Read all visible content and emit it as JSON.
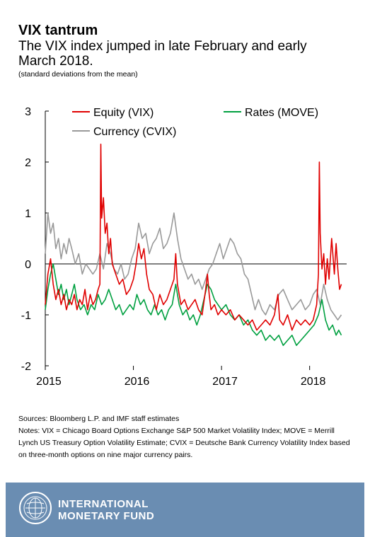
{
  "title": "VIX tantrum",
  "subtitle": "The VIX index jumped in late February and early March 2018.",
  "units": "(standard deviations from the mean)",
  "sources": "Sources: Bloomberg L.P. and IMF staff estimates",
  "notes": "Notes:  VIX = Chicago Board Options Exchange S&P 500 Market Volatility Index; MOVE = Merrill Lynch US Treasury Option Volatility Estimate; CVIX = Deutsche Bank Currency Volatility Index based on three-month options on nine major currency pairs.",
  "footer": {
    "org_line1": "INTERNATIONAL",
    "org_line2": "MONETARY FUND"
  },
  "colors": {
    "equity": "#e00000",
    "rates": "#00a040",
    "currency": "#999999",
    "footer_bg": "#6a8db2"
  },
  "chart_data": {
    "type": "line",
    "title": "",
    "xlabel": "",
    "ylabel": "",
    "ylim": [
      -2,
      3
    ],
    "yticks": [
      -2,
      -1,
      0,
      1,
      2,
      3
    ],
    "xlim": [
      2015.0,
      2018.42
    ],
    "xticks": [
      "2015",
      "2016",
      "2017",
      "2018"
    ],
    "grid": false,
    "legend": "top",
    "series": [
      {
        "name": "Equity (VIX)",
        "color": "#e00000",
        "x": [
          2015.0,
          2015.03,
          2015.06,
          2015.09,
          2015.12,
          2015.15,
          2015.18,
          2015.21,
          2015.24,
          2015.27,
          2015.3,
          2015.33,
          2015.36,
          2015.39,
          2015.42,
          2015.45,
          2015.48,
          2015.51,
          2015.54,
          2015.57,
          2015.6,
          2015.62,
          2015.63,
          2015.64,
          2015.66,
          2015.68,
          2015.7,
          2015.72,
          2015.74,
          2015.76,
          2015.8,
          2015.84,
          2015.88,
          2015.92,
          2015.96,
          2016.0,
          2016.03,
          2016.06,
          2016.09,
          2016.12,
          2016.15,
          2016.18,
          2016.22,
          2016.26,
          2016.3,
          2016.34,
          2016.38,
          2016.42,
          2016.46,
          2016.48,
          2016.5,
          2016.54,
          2016.58,
          2016.62,
          2016.66,
          2016.7,
          2016.74,
          2016.78,
          2016.82,
          2016.84,
          2016.86,
          2016.88,
          2016.92,
          2016.96,
          2017.0,
          2017.05,
          2017.1,
          2017.15,
          2017.2,
          2017.25,
          2017.3,
          2017.35,
          2017.4,
          2017.45,
          2017.5,
          2017.55,
          2017.6,
          2017.64,
          2017.66,
          2017.7,
          2017.75,
          2017.8,
          2017.85,
          2017.9,
          2017.95,
          2018.0,
          2018.04,
          2018.08,
          2018.1,
          2018.11,
          2018.12,
          2018.14,
          2018.16,
          2018.18,
          2018.2,
          2018.22,
          2018.25,
          2018.28,
          2018.3,
          2018.32,
          2018.34,
          2018.36
        ],
        "y": [
          -0.8,
          -0.2,
          0.1,
          -0.4,
          -0.7,
          -0.5,
          -0.8,
          -0.6,
          -0.9,
          -0.7,
          -0.8,
          -0.6,
          -0.9,
          -0.7,
          -0.8,
          -0.5,
          -0.9,
          -0.6,
          -0.8,
          -0.7,
          -0.5,
          -0.4,
          2.35,
          0.9,
          1.3,
          0.6,
          0.8,
          0.2,
          0.5,
          0.0,
          -0.2,
          -0.4,
          -0.3,
          -0.6,
          -0.5,
          -0.3,
          0.0,
          0.4,
          0.1,
          0.3,
          -0.2,
          -0.5,
          -0.6,
          -0.9,
          -0.6,
          -0.8,
          -0.7,
          -0.5,
          -0.3,
          0.2,
          -0.4,
          -0.8,
          -0.7,
          -0.9,
          -0.8,
          -0.7,
          -0.9,
          -1.0,
          -0.5,
          -0.2,
          -0.6,
          -0.9,
          -0.8,
          -1.0,
          -0.9,
          -1.0,
          -0.9,
          -1.1,
          -1.0,
          -1.1,
          -1.2,
          -1.1,
          -1.3,
          -1.2,
          -1.1,
          -1.2,
          -1.0,
          -0.6,
          -1.1,
          -1.2,
          -1.0,
          -1.3,
          -1.1,
          -1.2,
          -1.1,
          -1.2,
          -1.1,
          -0.8,
          -0.2,
          2.0,
          0.6,
          -0.1,
          0.2,
          -0.4,
          0.1,
          -0.3,
          0.5,
          -0.2,
          0.4,
          -0.1,
          -0.5,
          -0.4
        ]
      },
      {
        "name": "Rates (MOVE)",
        "color": "#00a040",
        "x": [
          2015.0,
          2015.03,
          2015.06,
          2015.09,
          2015.12,
          2015.15,
          2015.18,
          2015.21,
          2015.24,
          2015.27,
          2015.3,
          2015.33,
          2015.36,
          2015.4,
          2015.44,
          2015.48,
          2015.52,
          2015.56,
          2015.6,
          2015.64,
          2015.68,
          2015.72,
          2015.76,
          2015.8,
          2015.84,
          2015.88,
          2015.92,
          2015.96,
          2016.0,
          2016.04,
          2016.08,
          2016.12,
          2016.16,
          2016.2,
          2016.24,
          2016.28,
          2016.32,
          2016.36,
          2016.4,
          2016.44,
          2016.48,
          2016.52,
          2016.56,
          2016.6,
          2016.64,
          2016.68,
          2016.72,
          2016.76,
          2016.8,
          2016.84,
          2016.88,
          2016.92,
          2016.96,
          2017.0,
          2017.05,
          2017.1,
          2017.15,
          2017.2,
          2017.25,
          2017.3,
          2017.35,
          2017.4,
          2017.45,
          2017.5,
          2017.55,
          2017.6,
          2017.65,
          2017.7,
          2017.75,
          2017.8,
          2017.85,
          2017.9,
          2017.95,
          2018.0,
          2018.05,
          2018.1,
          2018.14,
          2018.18,
          2018.22,
          2018.26,
          2018.3,
          2018.33,
          2018.36
        ],
        "y": [
          -0.9,
          -0.5,
          -0.2,
          0.0,
          -0.3,
          -0.6,
          -0.4,
          -0.7,
          -0.5,
          -0.8,
          -0.6,
          -0.4,
          -0.7,
          -0.9,
          -0.8,
          -1.0,
          -0.8,
          -0.9,
          -0.6,
          -0.8,
          -0.7,
          -0.5,
          -0.7,
          -0.9,
          -0.8,
          -1.0,
          -0.9,
          -0.8,
          -0.9,
          -0.6,
          -0.8,
          -0.7,
          -0.9,
          -1.0,
          -0.8,
          -1.0,
          -0.9,
          -1.1,
          -0.9,
          -0.8,
          -0.4,
          -0.8,
          -1.0,
          -0.9,
          -1.1,
          -1.0,
          -1.2,
          -1.0,
          -0.7,
          -0.4,
          -0.5,
          -0.7,
          -0.8,
          -0.9,
          -0.8,
          -1.0,
          -1.1,
          -1.0,
          -1.2,
          -1.1,
          -1.3,
          -1.4,
          -1.3,
          -1.5,
          -1.4,
          -1.5,
          -1.4,
          -1.6,
          -1.5,
          -1.4,
          -1.6,
          -1.5,
          -1.4,
          -1.3,
          -1.2,
          -1.0,
          -0.7,
          -1.1,
          -1.3,
          -1.2,
          -1.4,
          -1.3,
          -1.4
        ]
      },
      {
        "name": "Currency (CVIX)",
        "color": "#999999",
        "x": [
          2015.0,
          2015.03,
          2015.06,
          2015.09,
          2015.12,
          2015.15,
          2015.18,
          2015.21,
          2015.24,
          2015.27,
          2015.3,
          2015.34,
          2015.38,
          2015.42,
          2015.46,
          2015.5,
          2015.54,
          2015.58,
          2015.62,
          2015.66,
          2015.7,
          2015.74,
          2015.78,
          2015.82,
          2015.86,
          2015.9,
          2015.94,
          2015.98,
          2016.02,
          2016.06,
          2016.1,
          2016.14,
          2016.18,
          2016.22,
          2016.26,
          2016.3,
          2016.34,
          2016.38,
          2016.42,
          2016.46,
          2016.5,
          2016.54,
          2016.58,
          2016.62,
          2016.66,
          2016.7,
          2016.74,
          2016.78,
          2016.82,
          2016.86,
          2016.9,
          2016.94,
          2016.98,
          2017.02,
          2017.06,
          2017.1,
          2017.14,
          2017.18,
          2017.22,
          2017.26,
          2017.3,
          2017.34,
          2017.38,
          2017.42,
          2017.46,
          2017.5,
          2017.55,
          2017.6,
          2017.65,
          2017.7,
          2017.75,
          2017.8,
          2017.85,
          2017.9,
          2017.95,
          2018.0,
          2018.04,
          2018.08,
          2018.12,
          2018.16,
          2018.2,
          2018.24,
          2018.28,
          2018.32,
          2018.36
        ],
        "y": [
          0.2,
          1.0,
          0.6,
          0.8,
          0.3,
          0.5,
          0.1,
          0.4,
          0.2,
          0.5,
          0.3,
          0.0,
          0.2,
          -0.2,
          0.0,
          -0.1,
          -0.2,
          -0.1,
          0.2,
          -0.1,
          0.4,
          0.2,
          -0.1,
          -0.2,
          0.0,
          -0.3,
          -0.2,
          0.1,
          0.3,
          0.8,
          0.5,
          0.6,
          0.2,
          0.4,
          0.5,
          0.7,
          0.3,
          0.4,
          0.6,
          1.0,
          0.5,
          0.1,
          -0.1,
          -0.3,
          -0.2,
          -0.4,
          -0.3,
          -0.5,
          -0.3,
          -0.1,
          0.0,
          0.2,
          0.4,
          0.1,
          0.3,
          0.5,
          0.4,
          0.2,
          0.1,
          -0.2,
          -0.3,
          -0.6,
          -0.9,
          -0.7,
          -0.9,
          -1.0,
          -0.8,
          -0.9,
          -0.6,
          -0.5,
          -0.7,
          -0.9,
          -0.8,
          -0.7,
          -0.9,
          -0.8,
          -0.6,
          -0.5,
          -0.8,
          -0.4,
          -0.7,
          -0.9,
          -1.0,
          -1.1,
          -1.0
        ]
      }
    ]
  }
}
